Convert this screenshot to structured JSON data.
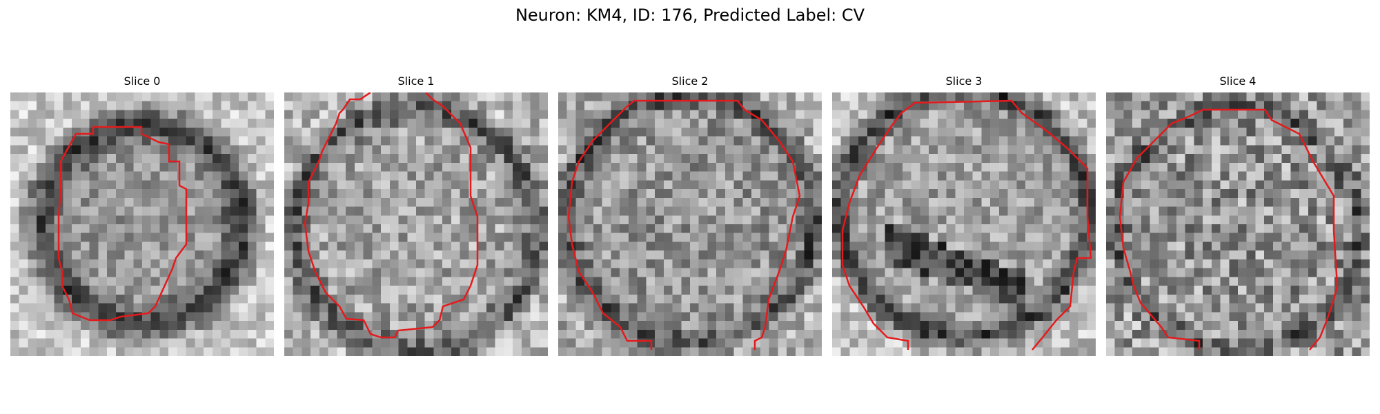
{
  "figure": {
    "title": "Neuron: KM4, ID: 176, Predicted Label: CV"
  },
  "colors": {
    "contour": "#e41a1c",
    "background": "#ffffff",
    "colormap": "gray"
  },
  "slices": [
    {
      "title": "Slice 0"
    },
    {
      "title": "Slice 1"
    },
    {
      "title": "Slice 2"
    },
    {
      "title": "Slice 3"
    },
    {
      "title": "Slice 4"
    }
  ]
}
